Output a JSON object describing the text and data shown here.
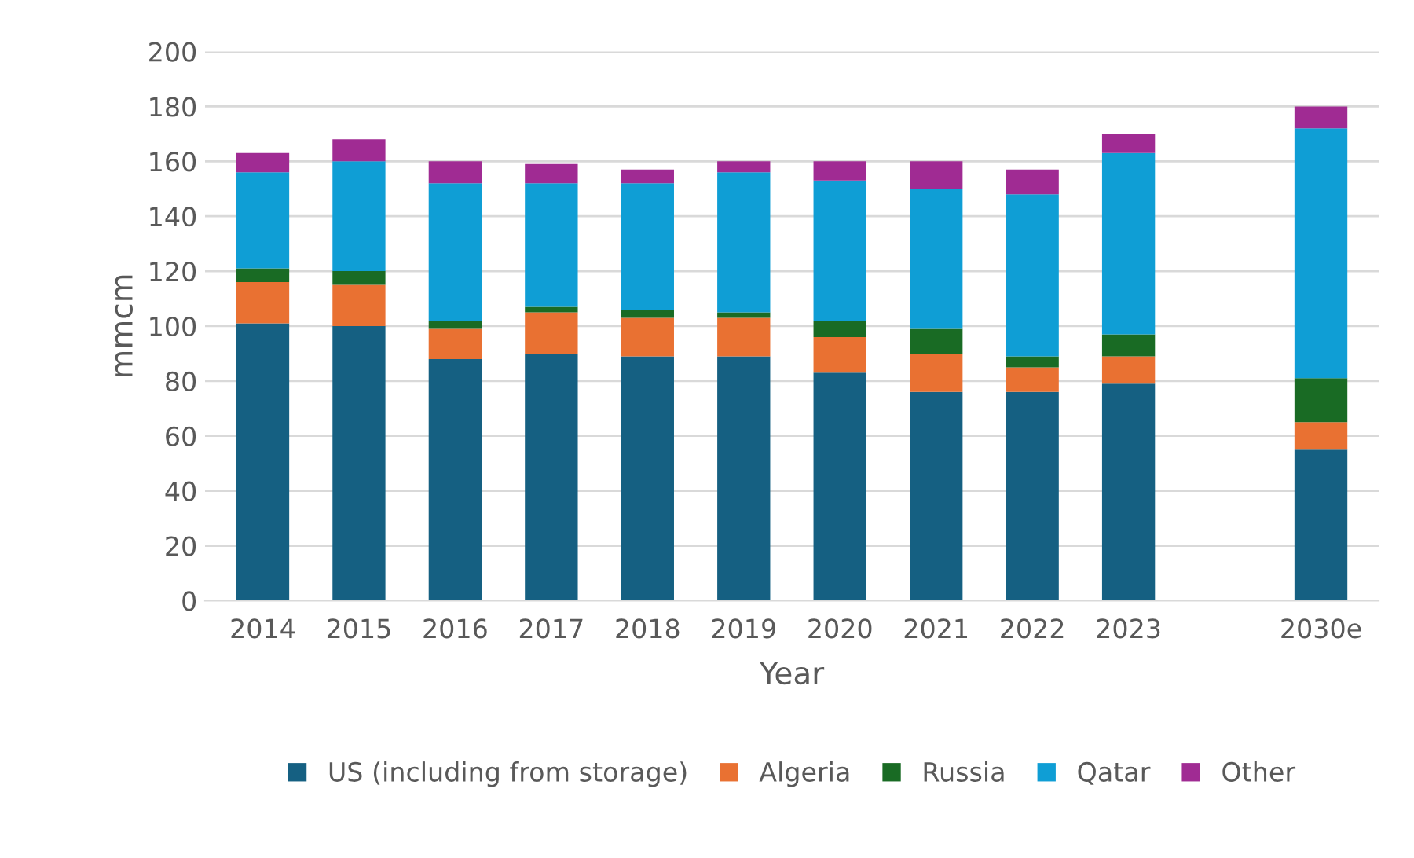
{
  "chart_data": {
    "type": "bar",
    "stacked": true,
    "xlabel": "Year",
    "ylabel": "mmcm",
    "categories": [
      "2014",
      "2015",
      "2016",
      "2017",
      "2018",
      "2019",
      "2020",
      "2021",
      "2022",
      "2023",
      null,
      "2030e"
    ],
    "series": [
      {
        "name": "US (including from storage)",
        "color": "#156082",
        "values": [
          101,
          100,
          88,
          90,
          89,
          89,
          83,
          76,
          76,
          79,
          null,
          55
        ]
      },
      {
        "name": "Algeria",
        "color": "#e97132",
        "values": [
          15,
          15,
          11,
          15,
          14,
          14,
          13,
          14,
          9,
          10,
          null,
          10
        ]
      },
      {
        "name": "Russia",
        "color": "#196b24",
        "values": [
          5,
          5,
          3,
          2,
          3,
          2,
          6,
          9,
          4,
          8,
          null,
          16
        ]
      },
      {
        "name": "Qatar",
        "color": "#0f9ed5",
        "values": [
          35,
          40,
          50,
          45,
          46,
          51,
          51,
          51,
          59,
          66,
          null,
          91
        ]
      },
      {
        "name": "Other",
        "color": "#a02b93",
        "values": [
          7,
          8,
          8,
          7,
          5,
          4,
          7,
          10,
          9,
          7,
          null,
          8
        ]
      }
    ],
    "ylim": [
      0,
      200
    ],
    "yticks": [
      0,
      20,
      40,
      60,
      80,
      100,
      120,
      140,
      160,
      180,
      200
    ],
    "grid": "y",
    "legend": "bottom"
  }
}
